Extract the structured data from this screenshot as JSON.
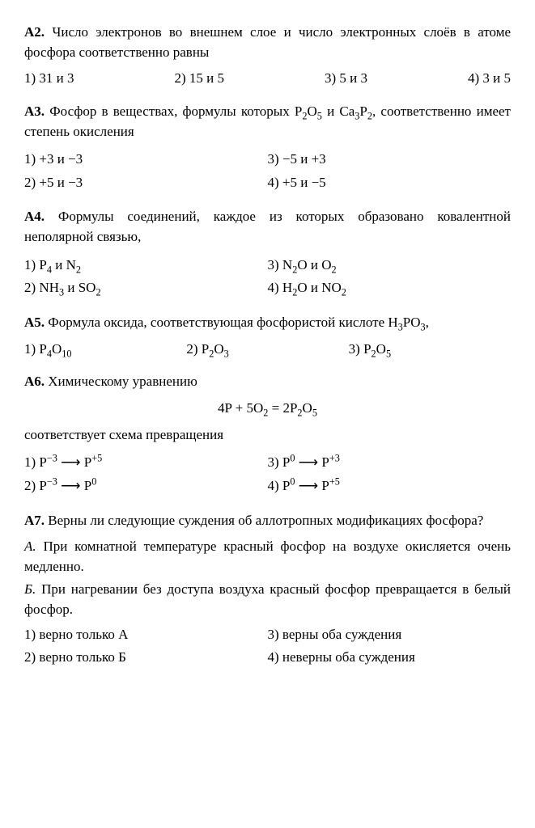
{
  "q2": {
    "num": "А2.",
    "text": "Число электронов во внешнем слое и число электронных слоёв в атоме фосфора соответственно равны",
    "opts": [
      "1) 31 и 3",
      "2) 15 и 5",
      "3) 5 и 3",
      "4) 3 и 5"
    ]
  },
  "q3": {
    "num": "А3.",
    "text_pre": "Фосфор в веществах, формулы которых ",
    "formula1_base": "P",
    "formula1_sub1": "2",
    "formula1_mid": "O",
    "formula1_sub2": "5",
    "joiner": " и ",
    "formula2_base": "Ca",
    "formula2_sub1": "3",
    "formula2_mid": "P",
    "formula2_sub2": "2",
    "text_post": ", соответственно имеет степень окисления",
    "opts": [
      "1) +3 и −3",
      "2) +5 и −3",
      "3) −5 и +3",
      "4) +5 и −5"
    ]
  },
  "q4": {
    "num": "А4.",
    "text": "Формулы соединений, каждое из которых образовано ковалентной неполярной связью,",
    "o1_pre": "1) P",
    "o1_s1": "4",
    "o1_mid": " и N",
    "o1_s2": "2",
    "o2_pre": "2) NH",
    "o2_s1": "3",
    "o2_mid": " и SO",
    "o2_s2": "2",
    "o3_pre": "3) N",
    "o3_s1": "2",
    "o3_mid": "O и O",
    "o3_s2": "2",
    "o4_pre": "4) H",
    "o4_s1": "2",
    "o4_mid": "O и NO",
    "o4_s2": "2"
  },
  "q5": {
    "num": "А5.",
    "text_pre": "Формула оксида, соответствующая фосфористой кислоте H",
    "t_s1": "3",
    "t_mid": "PO",
    "t_s2": "3",
    "t_post": ",",
    "o1_pre": "1) P",
    "o1_s1": "4",
    "o1_mid": "O",
    "o1_s2": "10",
    "o2_pre": "2) P",
    "o2_s1": "2",
    "o2_mid": "O",
    "o2_s2": "3",
    "o3_pre": "3) P",
    "o3_s1": "2",
    "o3_mid": "O",
    "o3_s2": "5"
  },
  "q6": {
    "num": "А6.",
    "text": "Химическому уравнению",
    "eq_pre": "4P + 5O",
    "eq_s1": "2",
    "eq_mid": " = 2P",
    "eq_s2": "2",
    "eq_mid2": "O",
    "eq_s3": "5",
    "text2": "соответствует схема превращения",
    "o1_pre": "1) P",
    "o1_sup1": "−3",
    "o1_arr": " ⟶ P",
    "o1_sup2": "+5",
    "o2_pre": "2) P",
    "o2_sup1": "−3",
    "o2_arr": " ⟶ P",
    "o2_sup2": "0",
    "o3_pre": "3) P",
    "o3_sup1": "0",
    "o3_arr": " ⟶ P",
    "o3_sup2": "+3",
    "o4_pre": "4) P",
    "o4_sup1": "0",
    "o4_arr": " ⟶ P",
    "o4_sup2": "+5"
  },
  "q7": {
    "num": "А7.",
    "text": "Верны ли следующие суждения об аллотропных модификациях фосфора?",
    "stA_label": "А.",
    "stA": "При комнатной температуре красный фосфор на воздухе окисляется очень медленно.",
    "stB_label": "Б.",
    "stB": "При нагревании без доступа воздуха красный фосфор превращается в белый фосфор.",
    "opts": [
      "1) верно только А",
      "2) верно только Б",
      "3) верны оба суждения",
      "4) неверны оба суждения"
    ]
  }
}
